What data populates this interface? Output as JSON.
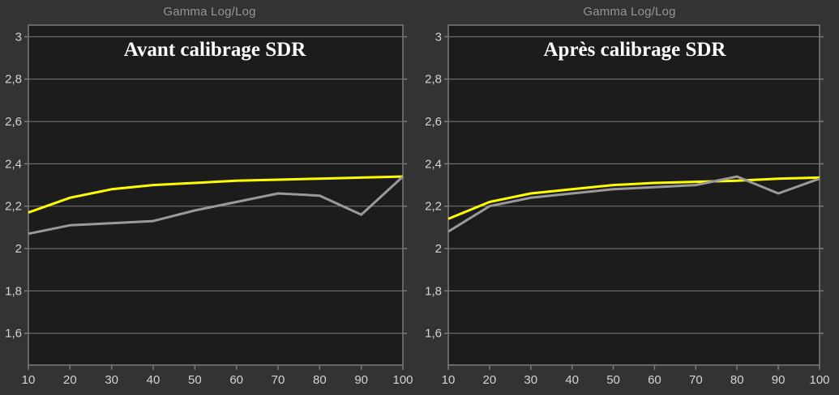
{
  "page": {
    "title": "Comparaison gamma avant / après calibrage SDR"
  },
  "colors": {
    "background": "#333333",
    "plot_background": "#1c1c1c",
    "grid": "#7b7b7b",
    "tick_label": "#d4d4d4",
    "chart_title": "#959595",
    "annotation": "#ffffff",
    "reference_curve": "#ffff00",
    "measured_curve": "#9a9a9a"
  },
  "chart_data": [
    {
      "type": "line",
      "title": "Gamma Log/Log",
      "annotation": "Avant calibrage SDR",
      "xlabel": "",
      "ylabel": "",
      "grid": "horizontal-only",
      "legend_position": "none",
      "xlim": [
        10,
        100
      ],
      "ylim": [
        1.45,
        3.055
      ],
      "x": [
        10,
        20,
        30,
        40,
        50,
        60,
        70,
        80,
        90,
        100
      ],
      "xticks": [
        10,
        20,
        30,
        40,
        50,
        60,
        70,
        80,
        90,
        100
      ],
      "xtick_labels": [
        "10",
        "20",
        "30",
        "40",
        "50",
        "60",
        "70",
        "80",
        "90",
        "100"
      ],
      "yticks": [
        1.6,
        1.8,
        2.0,
        2.2,
        2.4,
        2.6,
        2.8,
        3.0
      ],
      "ytick_labels": [
        "1,6",
        "1,8",
        "2",
        "2,2",
        "2,4",
        "2,6",
        "2,8",
        "3"
      ],
      "series": [
        {
          "name": "reference",
          "color": "#ffff00",
          "values": [
            2.17,
            2.24,
            2.28,
            2.3,
            2.31,
            2.32,
            2.325,
            2.33,
            2.335,
            2.34
          ]
        },
        {
          "name": "measured",
          "color": "#9a9a9a",
          "values": [
            2.07,
            2.11,
            2.12,
            2.13,
            2.18,
            2.22,
            2.26,
            2.25,
            2.16,
            2.34
          ]
        }
      ]
    },
    {
      "type": "line",
      "title": "Gamma Log/Log",
      "annotation": "Après calibrage SDR",
      "xlabel": "",
      "ylabel": "",
      "grid": "horizontal-only",
      "legend_position": "none",
      "xlim": [
        10,
        100
      ],
      "ylim": [
        1.45,
        3.055
      ],
      "x": [
        10,
        20,
        30,
        40,
        50,
        60,
        70,
        80,
        90,
        100
      ],
      "xticks": [
        10,
        20,
        30,
        40,
        50,
        60,
        70,
        80,
        90,
        100
      ],
      "xtick_labels": [
        "10",
        "20",
        "30",
        "40",
        "50",
        "60",
        "70",
        "80",
        "90",
        "100"
      ],
      "yticks": [
        1.6,
        1.8,
        2.0,
        2.2,
        2.4,
        2.6,
        2.8,
        3.0
      ],
      "ytick_labels": [
        "1,6",
        "1,8",
        "2",
        "2,2",
        "2,4",
        "2,6",
        "2,8",
        "3"
      ],
      "series": [
        {
          "name": "reference",
          "color": "#ffff00",
          "values": [
            2.14,
            2.22,
            2.26,
            2.28,
            2.3,
            2.31,
            2.315,
            2.32,
            2.33,
            2.335
          ]
        },
        {
          "name": "measured",
          "color": "#9a9a9a",
          "values": [
            2.08,
            2.2,
            2.24,
            2.26,
            2.28,
            2.29,
            2.3,
            2.34,
            2.26,
            2.33
          ]
        }
      ]
    }
  ]
}
